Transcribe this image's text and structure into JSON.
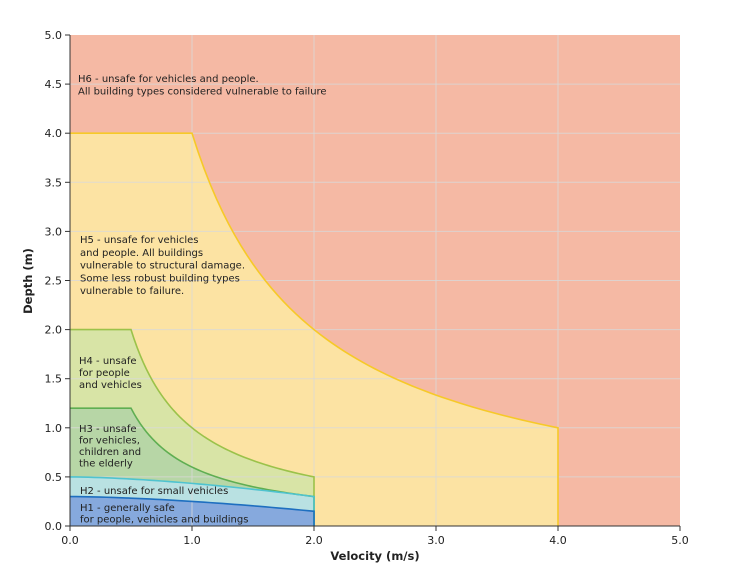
{
  "chart_data": {
    "type": "area",
    "title": "",
    "xlabel": "Velocity (m/s)",
    "ylabel": "Depth (m)",
    "xlim": [
      0,
      5
    ],
    "ylim": [
      0,
      5
    ],
    "x_ticks": [
      "0.0",
      "1.0",
      "2.0",
      "3.0",
      "4.0",
      "5.0"
    ],
    "y_ticks": [
      "0.0",
      "0.5",
      "1.0",
      "1.5",
      "2.0",
      "2.5",
      "3.0",
      "3.5",
      "4.0",
      "4.5",
      "5.0"
    ],
    "grid": true,
    "zones": [
      {
        "id": "H6",
        "color": "#f5b9a4",
        "edge": "#f5b9a4",
        "label_lines": [
          "H6 - unsafe for vehicles and people.",
          "All building types considered vulnerable to failure"
        ],
        "boundary": {
          "constant_depth": 5.0,
          "vd_product": null,
          "max_velocity": 5.0
        }
      },
      {
        "id": "H5",
        "color": "#fce3a3",
        "edge": "#f6c928",
        "label_lines": [
          "H5 - unsafe for vehicles",
          "and people. All buildings",
          "vulnerable to structural damage.",
          "Some less robust building types",
          "vulnerable to failure."
        ],
        "boundary": {
          "constant_depth": 4.0,
          "vd_product": 4.0,
          "max_velocity": 4.0
        }
      },
      {
        "id": "H4",
        "color": "#d8e4a6",
        "edge": "#9bc24a",
        "label_lines": [
          "H4 - unsafe",
          "for people",
          "and vehicles"
        ],
        "boundary": {
          "constant_depth": 2.0,
          "vd_product": 1.0,
          "max_velocity": 2.0
        }
      },
      {
        "id": "H3",
        "color": "#b7d6a6",
        "edge": "#5fae52",
        "label_lines": [
          "H3 - unsafe",
          "for vehicles,",
          "children and",
          "the elderly"
        ],
        "boundary": {
          "constant_depth": 1.2,
          "vd_product": 0.6,
          "max_velocity": 2.0
        }
      },
      {
        "id": "H2",
        "color": "#b9e1e2",
        "edge": "#4fc3cf",
        "label_lines": [
          "H2 - unsafe for small vehicles"
        ],
        "boundary": {
          "constant_depth": 0.5,
          "vd_product": null,
          "max_velocity": 2.0,
          "end_depth": 0.3
        }
      },
      {
        "id": "H1",
        "color": "#86a9dd",
        "edge": "#1e6fc0",
        "label_lines": [
          "H1 - generally safe",
          "for people, vehicles and buildings"
        ],
        "boundary": {
          "constant_depth": 0.3,
          "vd_product": null,
          "max_velocity": 2.0,
          "end_depth": 0.15
        }
      }
    ]
  }
}
